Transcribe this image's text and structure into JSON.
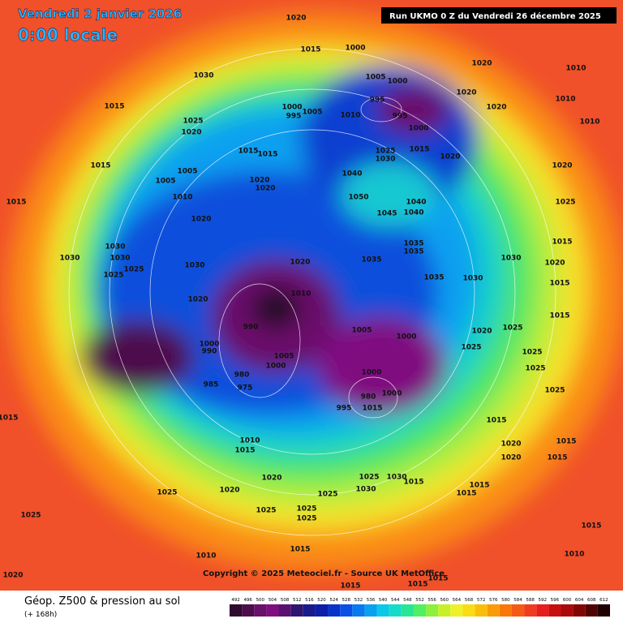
{
  "header": {
    "date": "Vendredi 2 janvier 2026",
    "time": "0:00 locale",
    "run": "Run UKMO 0 Z du Vendredi 26 décembre 2025"
  },
  "footer": {
    "copyright": "Copyright © 2025 Meteociel.fr - Source UK MetOffice",
    "caption": "Géop. Z500 & pression au sol",
    "lead": "(+ 168h)"
  },
  "legend": {
    "values": [
      492,
      496,
      500,
      504,
      508,
      512,
      516,
      520,
      524,
      528,
      532,
      536,
      540,
      544,
      548,
      552,
      556,
      560,
      564,
      568,
      572,
      576,
      580,
      584,
      588,
      592,
      596,
      600,
      604,
      608,
      612
    ],
    "colors": [
      "#2e0a2e",
      "#4d0d4d",
      "#6a0f6a",
      "#800d80",
      "#5a1070",
      "#2e1570",
      "#1a1a8c",
      "#0e1ea8",
      "#0a32c8",
      "#0a50e6",
      "#0a78f0",
      "#0aa0f0",
      "#0ac8e6",
      "#14dcc8",
      "#28e696",
      "#50f064",
      "#8cf03c",
      "#c8f028",
      "#f0f028",
      "#fadc14",
      "#fabe0a",
      "#fa9b0a",
      "#fa780a",
      "#f55a14",
      "#f03c1e",
      "#e61e1e",
      "#c80f0f",
      "#aa0a0a",
      "#820505",
      "#500303",
      "#1e0000"
    ]
  },
  "isobar_labels": [
    1020,
    1015,
    1000,
    1030,
    1015,
    1025,
    1020,
    1005,
    1000,
    995,
    995,
    1000,
    995,
    1005,
    1010,
    1000,
    1015,
    1020,
    1025,
    1030,
    1020,
    1020,
    1010,
    1010,
    1010,
    1020,
    1020,
    1025,
    1015,
    1020,
    1015,
    1015,
    1030,
    1030,
    1035,
    1035,
    1035,
    1035,
    1040,
    1040,
    1045,
    1050,
    1040,
    1005,
    1005,
    1010,
    1020,
    1020,
    1015,
    1015,
    1015,
    1015,
    1020,
    1030,
    1030,
    1030,
    1025,
    1025,
    1030,
    1020,
    1020,
    1010,
    990,
    1000,
    990,
    1005,
    1000,
    980,
    975,
    985,
    1005,
    1000,
    1000,
    1000,
    980,
    995,
    1015,
    1020,
    1025,
    1025,
    1025,
    1025,
    1025,
    1015,
    1020,
    1020,
    1015,
    1015,
    1015,
    1010,
    1015,
    1020,
    1020,
    1025,
    1025,
    1025,
    1025,
    1025,
    1025,
    1030,
    1030,
    1015,
    1015,
    1015,
    1025,
    1015,
    1010,
    1020,
    1015,
    1015,
    1015,
    1015,
    1010
  ]
}
